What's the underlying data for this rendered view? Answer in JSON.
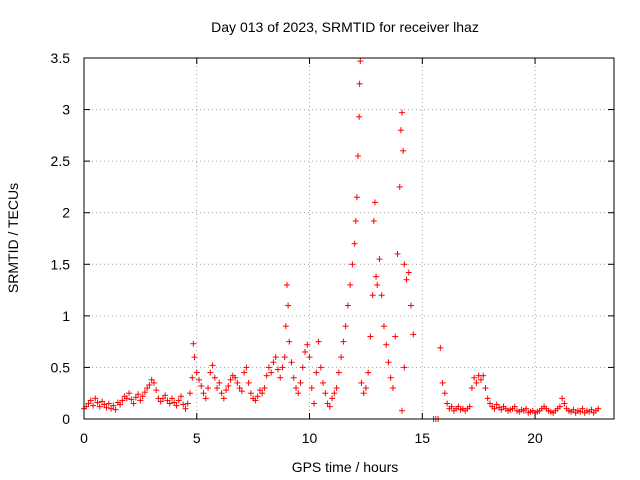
{
  "chart_data": {
    "type": "scatter",
    "title": "Day 013 of 2023, SRMTID for receiver lhaz",
    "xlabel": "GPS time / hours",
    "ylabel": "SRMTID / TECUs",
    "xlim": [
      0,
      23.5
    ],
    "ylim": [
      0,
      3.5
    ],
    "grid": true,
    "marker": "+",
    "color": "#ff0000",
    "xticks": [
      0,
      5,
      10,
      15,
      20
    ],
    "xtick_labels": [
      "0",
      "5",
      "10",
      "15",
      "20"
    ],
    "yticks": [
      0,
      0.5,
      1,
      1.5,
      2,
      2.5,
      3,
      3.5
    ],
    "ytick_labels": [
      "0",
      "0.5",
      "1",
      "1.5",
      "2",
      "2.5",
      "3",
      "3.5"
    ],
    "series": [
      {
        "name": "SRMTID",
        "points": [
          [
            0.0,
            0.1
          ],
          [
            0.1,
            0.12
          ],
          [
            0.2,
            0.15
          ],
          [
            0.3,
            0.18
          ],
          [
            0.4,
            0.13
          ],
          [
            0.5,
            0.2
          ],
          [
            0.6,
            0.16
          ],
          [
            0.7,
            0.12
          ],
          [
            0.8,
            0.17
          ],
          [
            0.9,
            0.14
          ],
          [
            1.0,
            0.11
          ],
          [
            1.1,
            0.15
          ],
          [
            1.2,
            0.1
          ],
          [
            1.3,
            0.13
          ],
          [
            1.4,
            0.09
          ],
          [
            1.5,
            0.16
          ],
          [
            1.6,
            0.14
          ],
          [
            1.7,
            0.18
          ],
          [
            1.8,
            0.22
          ],
          [
            1.9,
            0.2
          ],
          [
            2.0,
            0.25
          ],
          [
            2.1,
            0.19
          ],
          [
            2.2,
            0.15
          ],
          [
            2.3,
            0.21
          ],
          [
            2.4,
            0.24
          ],
          [
            2.5,
            0.18
          ],
          [
            2.6,
            0.22
          ],
          [
            2.7,
            0.26
          ],
          [
            2.8,
            0.3
          ],
          [
            2.9,
            0.33
          ],
          [
            3.0,
            0.38
          ],
          [
            3.1,
            0.35
          ],
          [
            3.2,
            0.28
          ],
          [
            3.3,
            0.2
          ],
          [
            3.4,
            0.17
          ],
          [
            3.5,
            0.2
          ],
          [
            3.6,
            0.23
          ],
          [
            3.7,
            0.18
          ],
          [
            3.8,
            0.15
          ],
          [
            3.9,
            0.2
          ],
          [
            4.0,
            0.16
          ],
          [
            4.1,
            0.13
          ],
          [
            4.2,
            0.18
          ],
          [
            4.3,
            0.22
          ],
          [
            4.4,
            0.14
          ],
          [
            4.5,
            0.1
          ],
          [
            4.6,
            0.15
          ],
          [
            4.7,
            0.25
          ],
          [
            4.8,
            0.4
          ],
          [
            4.85,
            0.73
          ],
          [
            4.9,
            0.6
          ],
          [
            5.0,
            0.45
          ],
          [
            5.1,
            0.38
          ],
          [
            5.2,
            0.32
          ],
          [
            5.3,
            0.25
          ],
          [
            5.4,
            0.2
          ],
          [
            5.5,
            0.3
          ],
          [
            5.6,
            0.45
          ],
          [
            5.7,
            0.52
          ],
          [
            5.8,
            0.4
          ],
          [
            5.9,
            0.3
          ],
          [
            6.0,
            0.35
          ],
          [
            6.1,
            0.25
          ],
          [
            6.2,
            0.2
          ],
          [
            6.3,
            0.28
          ],
          [
            6.4,
            0.32
          ],
          [
            6.5,
            0.38
          ],
          [
            6.6,
            0.42
          ],
          [
            6.7,
            0.4
          ],
          [
            6.8,
            0.35
          ],
          [
            6.9,
            0.3
          ],
          [
            7.0,
            0.27
          ],
          [
            7.1,
            0.45
          ],
          [
            7.2,
            0.5
          ],
          [
            7.3,
            0.35
          ],
          [
            7.4,
            0.25
          ],
          [
            7.5,
            0.2
          ],
          [
            7.6,
            0.18
          ],
          [
            7.7,
            0.22
          ],
          [
            7.8,
            0.28
          ],
          [
            7.9,
            0.25
          ],
          [
            8.0,
            0.3
          ],
          [
            8.1,
            0.42
          ],
          [
            8.2,
            0.5
          ],
          [
            8.3,
            0.45
          ],
          [
            8.4,
            0.55
          ],
          [
            8.5,
            0.6
          ],
          [
            8.6,
            0.48
          ],
          [
            8.7,
            0.4
          ],
          [
            8.8,
            0.5
          ],
          [
            8.9,
            0.6
          ],
          [
            8.95,
            0.9
          ],
          [
            9.0,
            1.3
          ],
          [
            9.05,
            1.1
          ],
          [
            9.1,
            0.75
          ],
          [
            9.2,
            0.55
          ],
          [
            9.3,
            0.4
          ],
          [
            9.4,
            0.3
          ],
          [
            9.5,
            0.25
          ],
          [
            9.6,
            0.35
          ],
          [
            9.7,
            0.5
          ],
          [
            9.8,
            0.65
          ],
          [
            9.9,
            0.72
          ],
          [
            10.0,
            0.6
          ],
          [
            10.1,
            0.3
          ],
          [
            10.2,
            0.15
          ],
          [
            10.3,
            0.45
          ],
          [
            10.4,
            0.75
          ],
          [
            10.5,
            0.5
          ],
          [
            10.6,
            0.35
          ],
          [
            10.7,
            0.25
          ],
          [
            10.8,
            0.15
          ],
          [
            10.9,
            0.12
          ],
          [
            11.0,
            0.2
          ],
          [
            11.1,
            0.25
          ],
          [
            11.2,
            0.3
          ],
          [
            11.3,
            0.45
          ],
          [
            11.4,
            0.6
          ],
          [
            11.5,
            0.75
          ],
          [
            11.6,
            0.9
          ],
          [
            11.7,
            1.1
          ],
          [
            11.8,
            1.3
          ],
          [
            11.9,
            1.5
          ],
          [
            12.0,
            1.7
          ],
          [
            12.05,
            1.92
          ],
          [
            12.1,
            2.15
          ],
          [
            12.15,
            2.55
          ],
          [
            12.2,
            2.93
          ],
          [
            12.22,
            3.25
          ],
          [
            12.25,
            3.47
          ],
          [
            12.3,
            0.35
          ],
          [
            12.4,
            0.25
          ],
          [
            12.5,
            0.3
          ],
          [
            12.6,
            0.45
          ],
          [
            12.7,
            0.8
          ],
          [
            12.8,
            1.2
          ],
          [
            12.85,
            1.92
          ],
          [
            12.9,
            2.1
          ],
          [
            12.95,
            1.38
          ],
          [
            13.0,
            1.3
          ],
          [
            13.1,
            1.55
          ],
          [
            13.2,
            1.2
          ],
          [
            13.3,
            0.9
          ],
          [
            13.4,
            0.72
          ],
          [
            13.5,
            0.55
          ],
          [
            13.6,
            0.4
          ],
          [
            13.7,
            0.3
          ],
          [
            13.8,
            0.8
          ],
          [
            13.9,
            1.6
          ],
          [
            14.0,
            2.25
          ],
          [
            14.05,
            2.8
          ],
          [
            14.1,
            2.97
          ],
          [
            14.15,
            2.6
          ],
          [
            14.2,
            1.5
          ],
          [
            14.3,
            1.35
          ],
          [
            14.4,
            1.42
          ],
          [
            14.5,
            1.1
          ],
          [
            14.6,
            0.82
          ],
          [
            14.1,
            0.08
          ],
          [
            14.2,
            0.5
          ],
          [
            15.5,
            0.0
          ],
          [
            15.6,
            0.0
          ],
          [
            15.7,
            0.0
          ],
          [
            15.8,
            0.69
          ],
          [
            15.9,
            0.35
          ],
          [
            16.0,
            0.25
          ],
          [
            16.1,
            0.15
          ],
          [
            16.2,
            0.1
          ],
          [
            16.3,
            0.12
          ],
          [
            16.4,
            0.08
          ],
          [
            16.5,
            0.1
          ],
          [
            16.6,
            0.12
          ],
          [
            16.7,
            0.09
          ],
          [
            16.8,
            0.1
          ],
          [
            16.9,
            0.08
          ],
          [
            17.0,
            0.1
          ],
          [
            17.1,
            0.12
          ],
          [
            17.2,
            0.3
          ],
          [
            17.3,
            0.4
          ],
          [
            17.4,
            0.35
          ],
          [
            17.5,
            0.42
          ],
          [
            17.6,
            0.38
          ],
          [
            17.7,
            0.42
          ],
          [
            17.8,
            0.3
          ],
          [
            17.9,
            0.2
          ],
          [
            18.0,
            0.15
          ],
          [
            18.1,
            0.12
          ],
          [
            18.2,
            0.1
          ],
          [
            18.3,
            0.14
          ],
          [
            18.4,
            0.11
          ],
          [
            18.5,
            0.09
          ],
          [
            18.6,
            0.12
          ],
          [
            18.7,
            0.1
          ],
          [
            18.8,
            0.08
          ],
          [
            18.9,
            0.09
          ],
          [
            19.0,
            0.1
          ],
          [
            19.1,
            0.12
          ],
          [
            19.2,
            0.08
          ],
          [
            19.3,
            0.07
          ],
          [
            19.4,
            0.09
          ],
          [
            19.5,
            0.08
          ],
          [
            19.6,
            0.1
          ],
          [
            19.7,
            0.06
          ],
          [
            19.8,
            0.07
          ],
          [
            19.9,
            0.08
          ],
          [
            20.0,
            0.06
          ],
          [
            20.1,
            0.07
          ],
          [
            20.2,
            0.08
          ],
          [
            20.3,
            0.1
          ],
          [
            20.4,
            0.12
          ],
          [
            20.5,
            0.1
          ],
          [
            20.6,
            0.08
          ],
          [
            20.7,
            0.07
          ],
          [
            20.8,
            0.06
          ],
          [
            20.9,
            0.08
          ],
          [
            21.0,
            0.1
          ],
          [
            21.1,
            0.12
          ],
          [
            21.2,
            0.2
          ],
          [
            21.3,
            0.15
          ],
          [
            21.4,
            0.1
          ],
          [
            21.5,
            0.08
          ],
          [
            21.6,
            0.07
          ],
          [
            21.7,
            0.09
          ],
          [
            21.8,
            0.06
          ],
          [
            21.9,
            0.08
          ],
          [
            22.0,
            0.07
          ],
          [
            22.1,
            0.1
          ],
          [
            22.2,
            0.06
          ],
          [
            22.3,
            0.08
          ],
          [
            22.4,
            0.07
          ],
          [
            22.5,
            0.09
          ],
          [
            22.6,
            0.06
          ],
          [
            22.7,
            0.08
          ],
          [
            22.8,
            0.1
          ]
        ]
      }
    ]
  }
}
